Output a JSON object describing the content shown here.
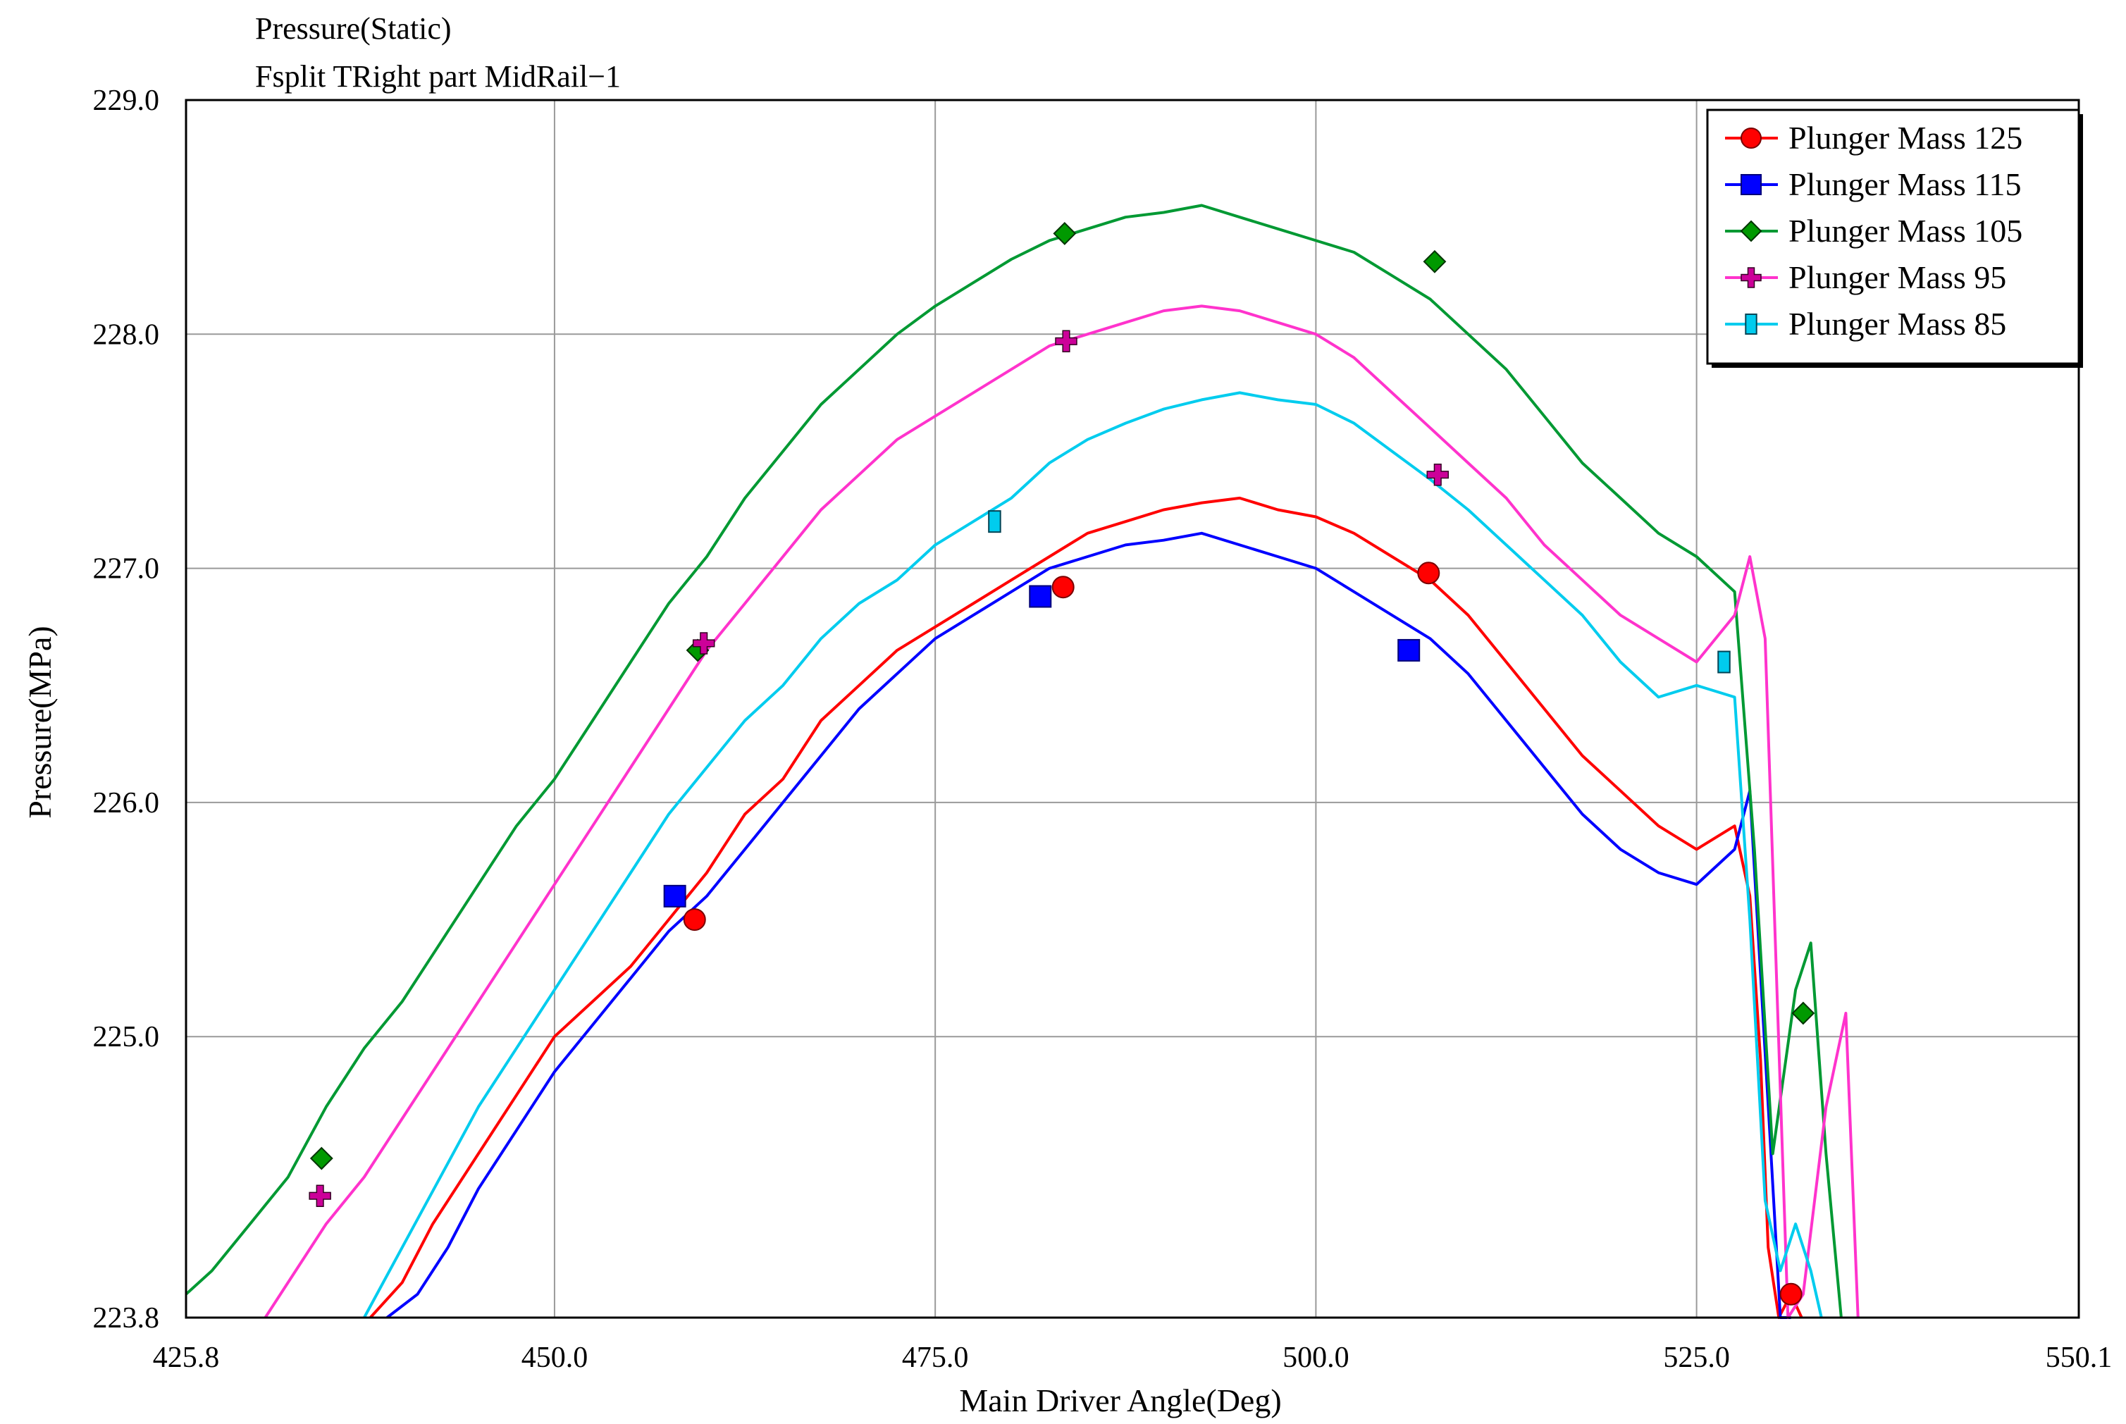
{
  "chart_data": {
    "type": "line",
    "title": "Pressure(Static)",
    "subtitle": "Fsplit TRight part MidRail−1",
    "xlabel": "Main Driver Angle(Deg)",
    "ylabel": "Pressure(MPa)",
    "xlim": [
      425.8,
      550.1
    ],
    "ylim": [
      223.8,
      229.0
    ],
    "x_ticks": [
      "425.8",
      "450.0",
      "475.0",
      "500.0",
      "525.0",
      "550.1"
    ],
    "y_ticks": [
      "229.0",
      "228.0",
      "227.0",
      "226.0",
      "225.0",
      "223.8"
    ],
    "grid": true,
    "legend_position": "top-right",
    "series": [
      {
        "name": "Plunger Mass 125",
        "color": "#ff0000",
        "marker": "circle",
        "marker_fill": "#ff0000",
        "x": [
          437.9,
          440,
          442,
          445,
          447.5,
          450,
          452.5,
          455,
          457.5,
          460,
          462.5,
          465,
          467.5,
          470,
          472.5,
          475,
          477.5,
          480,
          482.5,
          485,
          487.5,
          490,
          492.5,
          495,
          497.5,
          500,
          502.5,
          505,
          507.5,
          510,
          512.5,
          515,
          517.5,
          520,
          522.5,
          525,
          527.5,
          528.5,
          529.2,
          529.7,
          530.4,
          531.2,
          531.9
        ],
        "y": [
          223.8,
          223.95,
          224.2,
          224.5,
          224.75,
          225.0,
          225.15,
          225.3,
          225.5,
          225.7,
          225.95,
          226.1,
          226.35,
          226.5,
          226.65,
          226.75,
          226.85,
          226.95,
          227.05,
          227.15,
          227.2,
          227.25,
          227.28,
          227.3,
          227.25,
          227.22,
          227.15,
          227.05,
          226.95,
          226.8,
          226.6,
          226.4,
          226.2,
          226.05,
          225.9,
          225.8,
          225.9,
          225.6,
          224.9,
          224.1,
          223.8,
          223.9,
          223.8
        ],
        "markers_x": [
          459.2,
          483.4,
          507.4,
          531.2
        ],
        "markers_y": [
          225.5,
          226.92,
          226.98,
          223.9
        ]
      },
      {
        "name": "Plunger Mass 115",
        "color": "#0000ff",
        "marker": "square",
        "marker_fill": "#0000ff",
        "x": [
          439,
          441,
          443,
          445,
          447.5,
          450,
          452.5,
          455,
          457.5,
          460,
          462.5,
          465,
          467.5,
          470,
          472.5,
          475,
          477.5,
          480,
          482.5,
          485,
          487.5,
          490,
          492.5,
          495,
          497.5,
          500,
          502.5,
          505,
          507.5,
          510,
          512.5,
          515,
          517.5,
          520,
          522.5,
          525,
          527.5,
          528.5,
          529.8,
          530.5,
          531.2
        ],
        "y": [
          223.8,
          223.9,
          224.1,
          224.35,
          224.6,
          224.85,
          225.05,
          225.25,
          225.45,
          225.6,
          225.8,
          226.0,
          226.2,
          226.4,
          226.55,
          226.7,
          226.8,
          226.9,
          227.0,
          227.05,
          227.1,
          227.12,
          227.15,
          227.1,
          227.05,
          227.0,
          226.9,
          226.8,
          226.7,
          226.55,
          226.35,
          226.15,
          225.95,
          225.8,
          225.7,
          225.65,
          225.8,
          226.05,
          224.6,
          223.8,
          223.8
        ],
        "markers_x": [
          457.9,
          481.9,
          506.1
        ],
        "markers_y": [
          225.6,
          226.88,
          226.65
        ]
      },
      {
        "name": "Plunger Mass 105",
        "color": "#009933",
        "marker": "diamond",
        "marker_fill": "#009900",
        "x": [
          425.8,
          427.5,
          430,
          432.5,
          435,
          437.5,
          440,
          442.5,
          445,
          447.5,
          450,
          452.5,
          455,
          457.5,
          460,
          462.5,
          465,
          467.5,
          470,
          472.5,
          475,
          477.5,
          480,
          482.5,
          485,
          487.5,
          490,
          492.5,
          495,
          497.5,
          500,
          502.5,
          505,
          507.5,
          510,
          512.5,
          515,
          517.5,
          520,
          522.5,
          525,
          527.5,
          528.8,
          530,
          531.5,
          532.5,
          533.5,
          534.5
        ],
        "y": [
          223.9,
          224.0,
          224.2,
          224.4,
          224.7,
          224.95,
          225.15,
          225.4,
          225.65,
          225.9,
          226.1,
          226.35,
          226.6,
          226.85,
          227.05,
          227.3,
          227.5,
          227.7,
          227.85,
          228.0,
          228.12,
          228.22,
          228.32,
          228.4,
          228.45,
          228.5,
          228.52,
          228.55,
          228.5,
          228.45,
          228.4,
          228.35,
          228.25,
          228.15,
          228.0,
          227.85,
          227.65,
          227.45,
          227.3,
          227.15,
          227.05,
          226.9,
          225.8,
          224.5,
          225.2,
          225.4,
          224.5,
          223.8
        ],
        "markers_x": [
          434.7,
          459.4,
          483.5,
          507.8,
          532.0
        ],
        "markers_y": [
          224.48,
          226.65,
          228.43,
          228.31,
          225.1
        ]
      },
      {
        "name": "Plunger Mass 95",
        "color": "#ff33cc",
        "marker": "cross",
        "marker_fill": "#cc0099",
        "x": [
          431,
          433,
          435,
          437.5,
          440,
          442.5,
          445,
          447.5,
          450,
          452.5,
          455,
          457.5,
          460,
          462.5,
          465,
          467.5,
          470,
          472.5,
          475,
          477.5,
          480,
          482.5,
          485,
          487.5,
          490,
          492.5,
          495,
          497.5,
          500,
          502.5,
          505,
          507.5,
          510,
          512.5,
          515,
          517.5,
          520,
          522.5,
          525,
          527.5,
          528.5,
          529.5,
          531,
          532,
          533.5,
          534.8,
          535.6
        ],
        "y": [
          223.8,
          224.0,
          224.2,
          224.4,
          224.65,
          224.9,
          225.15,
          225.4,
          225.65,
          225.9,
          226.15,
          226.4,
          226.65,
          226.85,
          227.05,
          227.25,
          227.4,
          227.55,
          227.65,
          227.75,
          227.85,
          227.95,
          228.0,
          228.05,
          228.1,
          228.12,
          228.1,
          228.05,
          228.0,
          227.9,
          227.75,
          227.6,
          227.45,
          227.3,
          227.1,
          226.95,
          226.8,
          226.7,
          226.6,
          226.8,
          227.05,
          226.7,
          223.8,
          223.9,
          224.7,
          225.1,
          223.8
        ],
        "markers_x": [
          434.6,
          459.8,
          483.6,
          508.0
        ],
        "markers_y": [
          224.32,
          226.68,
          227.97,
          227.4
        ]
      },
      {
        "name": "Plunger Mass 85",
        "color": "#00ccee",
        "marker": "small-square",
        "marker_fill": "#00ccee",
        "x": [
          437.5,
          440,
          442.5,
          445,
          447.5,
          450,
          452.5,
          455,
          457.5,
          460,
          462.5,
          465,
          467.5,
          470,
          472.5,
          475,
          477.5,
          480,
          482.5,
          485,
          487.5,
          490,
          492.5,
          495,
          497.5,
          500,
          502.5,
          505,
          507.5,
          510,
          512.5,
          515,
          517.5,
          520,
          522.5,
          525,
          527.5,
          528.5,
          529.5,
          530.5,
          531.5,
          532.5,
          533.2
        ],
        "y": [
          223.8,
          224.1,
          224.4,
          224.7,
          224.95,
          225.2,
          225.45,
          225.7,
          225.95,
          226.15,
          226.35,
          226.5,
          226.7,
          226.85,
          226.95,
          227.1,
          227.2,
          227.3,
          227.45,
          227.55,
          227.62,
          227.68,
          227.72,
          227.75,
          227.72,
          227.7,
          227.62,
          227.5,
          227.38,
          227.25,
          227.1,
          226.95,
          226.8,
          226.6,
          226.45,
          226.5,
          226.45,
          225.5,
          224.3,
          224.0,
          224.2,
          224.0,
          223.8
        ],
        "markers_x": [
          478.9,
          526.8
        ],
        "markers_y": [
          227.2,
          226.6
        ]
      }
    ]
  }
}
